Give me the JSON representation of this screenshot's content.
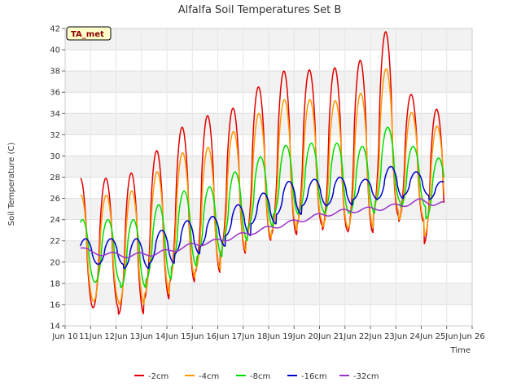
{
  "chart_data": {
    "type": "line",
    "title": "Alfalfa Soil Temperatures Set B",
    "badge": "TA_met",
    "xlabel": "Time",
    "ylabel": "Soil Temperature (C)",
    "xlim": [
      10,
      26
    ],
    "ylim": [
      14,
      42
    ],
    "x_ticks": [
      10,
      11,
      12,
      13,
      14,
      15,
      16,
      17,
      18,
      19,
      20,
      21,
      22,
      23,
      24,
      25,
      26
    ],
    "x_tick_labels": [
      "Jun 10",
      "11Jun",
      "12Jun",
      "13Jun",
      "14Jun",
      "15Jun",
      "16Jun",
      "17Jun",
      "18Jun",
      "19Jun",
      "20Jun",
      "21Jun",
      "22Jun",
      "23Jun",
      "24Jun",
      "25Jun",
      "Jun 26"
    ],
    "y_ticks": [
      14,
      16,
      18,
      20,
      22,
      24,
      26,
      28,
      30,
      32,
      34,
      36,
      38,
      40,
      42
    ],
    "grid": true,
    "legend_position": "bottom",
    "day_start": 10.6,
    "day_end": 24.9,
    "series": [
      {
        "name": "-2cm",
        "color": "#e00000",
        "phase": 0.6,
        "daily_max": [
          27.9,
          28.4,
          30.5,
          32.7,
          33.8,
          34.5,
          36.5,
          38.0,
          38.1,
          38.3,
          39.0,
          41.7,
          35.8,
          34.4
        ],
        "daily_min": [
          15.7,
          15.1,
          16.5,
          18.1,
          19.0,
          20.8,
          22.0,
          22.6,
          23.5,
          23.0,
          22.8,
          24.4,
          23.8,
          21.7
        ]
      },
      {
        "name": "-4cm",
        "color": "#ff9900",
        "phase": 0.62,
        "daily_max": [
          26.3,
          26.7,
          28.5,
          30.3,
          30.8,
          32.3,
          34.0,
          35.3,
          35.3,
          35.2,
          35.9,
          38.2,
          34.1,
          32.8
        ],
        "daily_min": [
          16.3,
          16.0,
          17.0,
          18.5,
          19.3,
          21.0,
          22.2,
          23.0,
          23.8,
          23.3,
          23.2,
          24.8,
          24.0,
          22.5
        ]
      },
      {
        "name": "-8cm",
        "color": "#00dd00",
        "phase": 0.68,
        "daily_max": [
          24.0,
          24.0,
          25.4,
          26.7,
          27.1,
          28.5,
          29.9,
          31.0,
          31.2,
          31.2,
          30.9,
          32.7,
          30.9,
          29.8
        ],
        "daily_min": [
          18.1,
          17.6,
          18.4,
          19.6,
          20.5,
          22.0,
          23.3,
          24.5,
          24.8,
          24.6,
          24.6,
          25.7,
          25.2,
          24.1
        ]
      },
      {
        "name": "-16cm",
        "color": "#0000cc",
        "phase": 0.8,
        "daily_max": [
          22.2,
          22.2,
          23.0,
          23.9,
          24.3,
          25.4,
          26.5,
          27.6,
          27.8,
          28.0,
          27.8,
          29.0,
          28.5,
          27.6
        ],
        "daily_min": [
          19.8,
          19.4,
          19.9,
          20.8,
          21.5,
          22.5,
          23.6,
          24.5,
          25.3,
          25.4,
          25.9,
          26.0,
          26.3,
          25.9
        ]
      }
    ],
    "trend_series": {
      "name": "-32cm",
      "color": "#9933cc",
      "x": [
        10.6,
        11.0,
        11.5,
        12.0,
        12.5,
        13.0,
        13.5,
        14.0,
        14.5,
        15.0,
        15.5,
        16.0,
        16.5,
        17.0,
        17.5,
        18.0,
        18.5,
        19.0,
        19.5,
        20.0,
        20.5,
        21.0,
        21.5,
        22.0,
        22.5,
        23.0,
        23.5,
        24.0,
        24.5,
        24.9
      ],
      "y": [
        21.4,
        20.9,
        20.8,
        20.7,
        20.6,
        20.7,
        20.8,
        21.0,
        21.3,
        21.6,
        21.8,
        22.0,
        22.3,
        22.6,
        22.9,
        23.2,
        23.5,
        23.8,
        24.1,
        24.4,
        24.6,
        24.8,
        24.9,
        25.0,
        25.1,
        25.3,
        25.5,
        25.8,
        25.5,
        25.5
      ],
      "amplitude": 0.2
    }
  }
}
